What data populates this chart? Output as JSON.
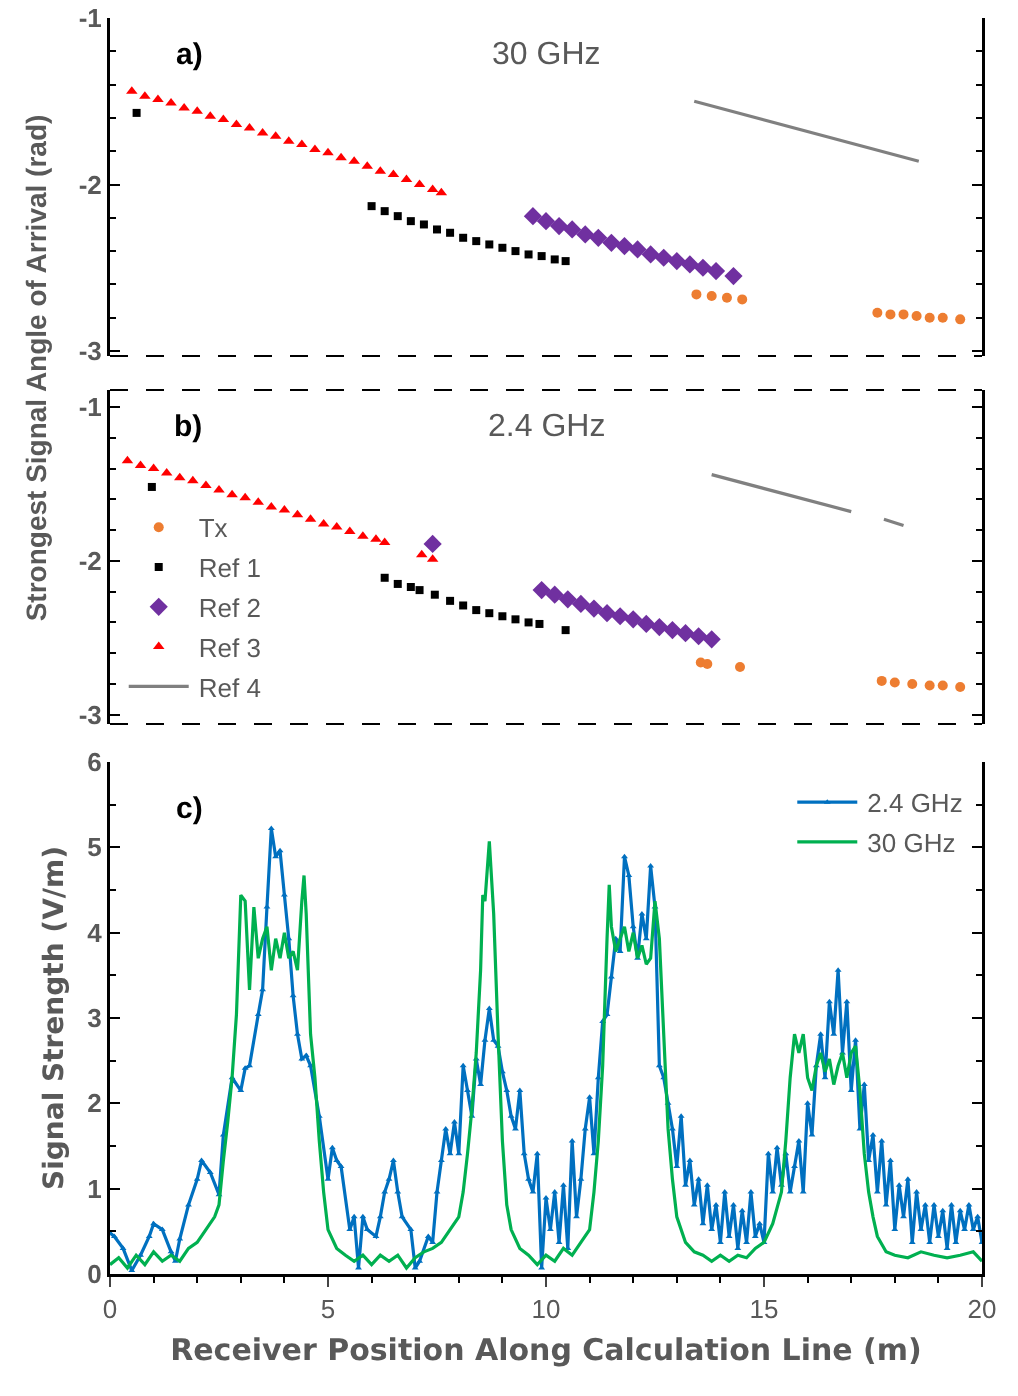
{
  "chart_data": [
    {
      "type": "scatter",
      "ylabel": "Strongest Signal Angle of Arrival (rad)",
      "annotations": [
        "a)",
        "30 GHz"
      ],
      "xlim": [
        0,
        20
      ],
      "ylim": [
        -3.03,
        -1
      ],
      "yticks": [
        -3,
        -2,
        -1
      ],
      "tick_labels": "y",
      "grid": false,
      "legend": false,
      "series": [
        {
          "color": "#ed7d31",
          "marker": "circle",
          "x": [
            13.45,
            13.8,
            14.15,
            14.5,
            17.6,
            17.9,
            18.2,
            18.5,
            18.8,
            19.1,
            19.5
          ],
          "values": [
            -2.66,
            -2.67,
            -2.68,
            -2.69,
            -2.77,
            -2.78,
            -2.78,
            -2.79,
            -2.8,
            -2.8,
            -2.81
          ]
        },
        {
          "color": "#000000",
          "marker": "square",
          "x": [
            0.61,
            6.0,
            6.3,
            6.6,
            6.9,
            7.2,
            7.5,
            7.8,
            8.1,
            8.4,
            8.7,
            9.0,
            9.3,
            9.6,
            9.9,
            10.2,
            10.45
          ],
          "values": [
            -1.57,
            -2.13,
            -2.16,
            -2.19,
            -2.22,
            -2.24,
            -2.27,
            -2.29,
            -2.32,
            -2.34,
            -2.36,
            -2.38,
            -2.4,
            -2.42,
            -2.43,
            -2.45,
            -2.46
          ]
        },
        {
          "color": "#7030a0",
          "marker": "diamond",
          "x": [
            9.7,
            10.0,
            10.3,
            10.6,
            10.9,
            11.2,
            11.5,
            11.8,
            12.1,
            12.4,
            12.7,
            13.0,
            13.3,
            13.6,
            13.9,
            14.3
          ],
          "values": [
            -2.19,
            -2.22,
            -2.25,
            -2.27,
            -2.3,
            -2.32,
            -2.35,
            -2.37,
            -2.39,
            -2.42,
            -2.44,
            -2.46,
            -2.48,
            -2.5,
            -2.52,
            -2.55
          ]
        },
        {
          "color": "#ff0000",
          "marker": "triangle",
          "x": [
            0.5,
            0.8,
            1.1,
            1.4,
            1.7,
            2.0,
            2.3,
            2.6,
            2.9,
            3.2,
            3.5,
            3.8,
            4.1,
            4.4,
            4.7,
            5.0,
            5.3,
            5.6,
            5.9,
            6.2,
            6.5,
            6.8,
            7.1,
            7.4,
            7.6
          ],
          "values": [
            -1.44,
            -1.47,
            -1.49,
            -1.51,
            -1.54,
            -1.56,
            -1.59,
            -1.61,
            -1.64,
            -1.66,
            -1.69,
            -1.71,
            -1.74,
            -1.76,
            -1.79,
            -1.81,
            -1.84,
            -1.86,
            -1.89,
            -1.92,
            -1.94,
            -1.97,
            -2.0,
            -2.03,
            -2.05
          ]
        },
        {
          "type": "line",
          "color": "#808080",
          "marker": "none",
          "x": [
            13.4,
            18.55
          ],
          "values": [
            -1.5,
            -1.86
          ]
        }
      ]
    },
    {
      "type": "scatter",
      "annotations": [
        "b)",
        "2.4 GHz"
      ],
      "xlim": [
        0,
        20
      ],
      "ylim": [
        -3.06,
        -0.89
      ],
      "yticks": [
        -3,
        -2,
        -1
      ],
      "tick_labels": "y",
      "grid": false,
      "legend": "bottom left",
      "series": [
        {
          "name": "Tx",
          "color": "#ed7d31",
          "marker": "circle",
          "x": [
            13.55,
            13.7,
            14.45,
            17.7,
            18.0,
            18.4,
            18.8,
            19.1,
            19.5
          ],
          "values": [
            -2.66,
            -2.67,
            -2.69,
            -2.78,
            -2.79,
            -2.8,
            -2.81,
            -2.81,
            -2.82
          ]
        },
        {
          "name": "Ref 1",
          "color": "#000000",
          "marker": "square",
          "x": [
            0.96,
            6.3,
            6.6,
            6.9,
            7.1,
            7.45,
            7.8,
            8.1,
            8.4,
            8.7,
            9.0,
            9.3,
            9.6,
            9.85,
            10.45
          ],
          "values": [
            -1.52,
            -2.11,
            -2.15,
            -2.17,
            -2.19,
            -2.22,
            -2.26,
            -2.29,
            -2.32,
            -2.34,
            -2.36,
            -2.38,
            -2.4,
            -2.41,
            -2.45
          ]
        },
        {
          "name": "Ref 2",
          "color": "#7030a0",
          "marker": "diamond",
          "x": [
            7.4,
            9.9,
            10.2,
            10.5,
            10.8,
            11.1,
            11.4,
            11.7,
            12.0,
            12.3,
            12.6,
            12.9,
            13.2,
            13.5,
            13.8
          ],
          "values": [
            -1.89,
            -2.19,
            -2.22,
            -2.25,
            -2.28,
            -2.31,
            -2.34,
            -2.36,
            -2.38,
            -2.41,
            -2.43,
            -2.45,
            -2.47,
            -2.49,
            -2.51
          ]
        },
        {
          "name": "Ref 3",
          "color": "#ff0000",
          "marker": "triangle",
          "x": [
            0.4,
            0.7,
            1.0,
            1.3,
            1.6,
            1.9,
            2.2,
            2.5,
            2.8,
            3.1,
            3.4,
            3.7,
            4.0,
            4.3,
            4.6,
            4.9,
            5.2,
            5.5,
            5.8,
            6.1,
            6.3,
            7.15,
            7.4
          ],
          "values": [
            -1.35,
            -1.38,
            -1.4,
            -1.43,
            -1.46,
            -1.48,
            -1.51,
            -1.54,
            -1.57,
            -1.59,
            -1.62,
            -1.65,
            -1.67,
            -1.7,
            -1.73,
            -1.76,
            -1.78,
            -1.81,
            -1.84,
            -1.86,
            -1.88,
            -1.96,
            -1.99
          ]
        },
        {
          "name": "Ref 4",
          "type": "line",
          "color": "#808080",
          "marker": "none",
          "x": [
            13.8,
            17.0,
            17.3,
            17.75,
            18.2
          ],
          "values": [
            -1.44,
            -1.68,
            null,
            -1.73,
            -1.77
          ]
        }
      ]
    },
    {
      "type": "line",
      "xlabel": "Receiver Position Along Calculation Line (m)",
      "ylabel": "Signal Strength (V/m)",
      "annotations": [
        "c)"
      ],
      "xlim": [
        0,
        20
      ],
      "xticks": [
        0,
        5,
        10,
        15,
        20
      ],
      "ylim": [
        0,
        6
      ],
      "yticks": [
        0,
        1,
        2,
        3,
        4,
        5,
        6
      ],
      "grid": false,
      "legend": "top right",
      "series": [
        {
          "name": "2.4 GHz",
          "color": "#0070c0",
          "marker": "triangle",
          "x": [
            0.0,
            0.1,
            0.3,
            0.5,
            0.7,
            0.9,
            1.0,
            1.2,
            1.4,
            1.5,
            1.6,
            1.8,
            2.0,
            2.1,
            2.3,
            2.5,
            2.6,
            2.8,
            3.0,
            3.1,
            3.2,
            3.4,
            3.5,
            3.6,
            3.7,
            3.8,
            3.9,
            4.0,
            4.1,
            4.2,
            4.3,
            4.4,
            4.5,
            4.6,
            4.8,
            5.0,
            5.1,
            5.2,
            5.3,
            5.5,
            5.6,
            5.7,
            5.8,
            5.9,
            6.1,
            6.2,
            6.3,
            6.4,
            6.5,
            6.6,
            6.7,
            6.9,
            7.0,
            7.1,
            7.3,
            7.4,
            7.5,
            7.6,
            7.7,
            7.8,
            7.9,
            8.0,
            8.1,
            8.2,
            8.3,
            8.4,
            8.5,
            8.6,
            8.7,
            8.8,
            8.9,
            9.0,
            9.1,
            9.2,
            9.3,
            9.4,
            9.5,
            9.6,
            9.7,
            9.8,
            9.9,
            10.0,
            10.1,
            10.2,
            10.3,
            10.4,
            10.5,
            10.6,
            10.7,
            10.8,
            10.9,
            11.0,
            11.1,
            11.2,
            11.3,
            11.4,
            11.5,
            11.6,
            11.7,
            11.8,
            11.9,
            12.0,
            12.1,
            12.2,
            12.3,
            12.4,
            12.5,
            12.6,
            12.7,
            12.8,
            12.9,
            13.0,
            13.1,
            13.2,
            13.3,
            13.4,
            13.5,
            13.6,
            13.7,
            13.8,
            13.9,
            14.0,
            14.1,
            14.2,
            14.3,
            14.4,
            14.5,
            14.6,
            14.7,
            14.8,
            14.9,
            15.0,
            15.1,
            15.2,
            15.3,
            15.4,
            15.5,
            15.6,
            15.7,
            15.8,
            15.9,
            16.0,
            16.1,
            16.2,
            16.3,
            16.4,
            16.5,
            16.6,
            16.7,
            16.8,
            16.9,
            17.0,
            17.1,
            17.2,
            17.3,
            17.4,
            17.5,
            17.6,
            17.7,
            17.8,
            17.9,
            18.0,
            18.1,
            18.2,
            18.3,
            18.4,
            18.5,
            18.6,
            18.7,
            18.8,
            18.9,
            19.0,
            19.1,
            19.2,
            19.3,
            19.4,
            19.5,
            19.6,
            19.7,
            19.8,
            19.9,
            20.0
          ],
          "values": [
            0.48,
            0.44,
            0.3,
            0.04,
            0.22,
            0.44,
            0.59,
            0.52,
            0.26,
            0.15,
            0.41,
            0.81,
            1.11,
            1.33,
            1.19,
            0.93,
            1.63,
            2.3,
            2.15,
            2.41,
            2.44,
            3.04,
            3.33,
            4.3,
            5.22,
            4.89,
            4.96,
            4.44,
            3.93,
            3.26,
            2.81,
            2.52,
            2.56,
            2.44,
            1.85,
            1.11,
            1.48,
            1.33,
            1.26,
            0.52,
            0.67,
            0.07,
            0.67,
            0.52,
            0.44,
            0.67,
            0.96,
            1.11,
            1.33,
            0.96,
            0.67,
            0.52,
            0.07,
            0.15,
            0.44,
            0.37,
            0.96,
            1.33,
            1.7,
            1.41,
            1.78,
            1.41,
            2.44,
            2.15,
            1.85,
            2.52,
            2.22,
            2.74,
            3.11,
            2.74,
            2.67,
            2.37,
            2.15,
            1.85,
            1.7,
            2.15,
            1.41,
            1.11,
            0.96,
            1.41,
            0.07,
            0.89,
            0.52,
            0.96,
            0.37,
            1.04,
            0.3,
            1.56,
            0.67,
            1.11,
            1.7,
            2.07,
            1.41,
            2.3,
            2.96,
            3.04,
            3.48,
            3.93,
            3.78,
            4.89,
            4.67,
            4.07,
            3.7,
            4.22,
            3.93,
            4.78,
            4.3,
            2.44,
            2.3,
            2.0,
            1.7,
            1.26,
            1.85,
            1.04,
            1.33,
            0.81,
            1.11,
            0.59,
            1.04,
            0.52,
            0.81,
            0.37,
            0.96,
            0.44,
            0.81,
            0.3,
            0.74,
            0.37,
            0.96,
            0.44,
            0.59,
            0.37,
            1.41,
            0.96,
            1.48,
            1.04,
            1.41,
            0.96,
            1.26,
            1.56,
            0.96,
            2.0,
            1.63,
            2.44,
            2.81,
            2.3,
            3.19,
            2.81,
            3.56,
            2.59,
            3.19,
            2.15,
            2.74,
            1.7,
            2.22,
            1.33,
            1.63,
            0.96,
            1.56,
            0.81,
            1.33,
            0.52,
            1.04,
            0.67,
            1.11,
            0.37,
            0.96,
            0.52,
            0.81,
            0.37,
            0.81,
            0.44,
            0.74,
            0.3,
            0.81,
            0.37,
            0.74,
            0.52,
            0.81,
            0.52,
            0.67,
            0.37
          ]
        },
        {
          "name": "30 GHz",
          "color": "#00b050",
          "marker": "none",
          "x": [
            0.0,
            0.2,
            0.4,
            0.6,
            0.8,
            1.0,
            1.2,
            1.4,
            1.6,
            1.8,
            2.0,
            2.2,
            2.4,
            2.5,
            2.6,
            2.7,
            2.8,
            2.9,
            3.0,
            3.1,
            3.2,
            3.3,
            3.4,
            3.5,
            3.6,
            3.7,
            3.8,
            3.9,
            4.0,
            4.1,
            4.2,
            4.3,
            4.4,
            4.45,
            4.5,
            4.6,
            4.7,
            4.8,
            4.9,
            5.0,
            5.2,
            5.4,
            5.6,
            5.8,
            6.0,
            6.2,
            6.4,
            6.6,
            6.8,
            7.0,
            7.2,
            7.4,
            7.6,
            7.8,
            8.0,
            8.1,
            8.2,
            8.3,
            8.4,
            8.5,
            8.55,
            8.6,
            8.7,
            8.8,
            8.9,
            9.0,
            9.1,
            9.2,
            9.4,
            9.6,
            9.8,
            10.0,
            10.2,
            10.4,
            10.6,
            10.8,
            11.0,
            11.1,
            11.2,
            11.3,
            11.4,
            11.45,
            11.5,
            11.6,
            11.7,
            11.8,
            11.9,
            12.0,
            12.1,
            12.2,
            12.3,
            12.4,
            12.5,
            12.6,
            12.7,
            12.8,
            12.9,
            13.0,
            13.2,
            13.4,
            13.6,
            13.8,
            14.0,
            14.2,
            14.4,
            14.6,
            14.8,
            15.0,
            15.2,
            15.4,
            15.5,
            15.6,
            15.7,
            15.8,
            15.9,
            16.0,
            16.1,
            16.2,
            16.3,
            16.4,
            16.5,
            16.6,
            16.7,
            16.8,
            16.9,
            17.0,
            17.1,
            17.2,
            17.3,
            17.4,
            17.5,
            17.6,
            17.8,
            18.0,
            18.3,
            18.6,
            18.9,
            19.2,
            19.5,
            19.8,
            20.0
          ],
          "values": [
            0.11,
            0.19,
            0.07,
            0.22,
            0.11,
            0.26,
            0.15,
            0.22,
            0.15,
            0.3,
            0.37,
            0.52,
            0.67,
            0.81,
            1.33,
            1.78,
            2.3,
            3.04,
            4.44,
            4.37,
            3.33,
            4.3,
            3.7,
            3.93,
            4.07,
            3.56,
            3.93,
            3.7,
            4.0,
            3.7,
            3.78,
            3.56,
            4.37,
            4.67,
            4.22,
            2.81,
            2.3,
            1.56,
            0.96,
            0.52,
            0.3,
            0.22,
            0.15,
            0.22,
            0.11,
            0.22,
            0.15,
            0.22,
            0.07,
            0.19,
            0.26,
            0.3,
            0.37,
            0.52,
            0.67,
            0.96,
            1.41,
            1.93,
            2.59,
            3.56,
            4.44,
            4.37,
            5.07,
            4.22,
            2.81,
            1.56,
            0.81,
            0.52,
            0.3,
            0.22,
            0.11,
            0.22,
            0.15,
            0.3,
            0.22,
            0.37,
            0.52,
            0.96,
            1.56,
            2.44,
            3.93,
            4.56,
            4.07,
            3.78,
            3.93,
            4.07,
            3.78,
            4.0,
            3.7,
            3.85,
            3.63,
            3.7,
            4.37,
            3.93,
            2.81,
            1.7,
            1.11,
            0.67,
            0.37,
            0.26,
            0.22,
            0.15,
            0.22,
            0.15,
            0.22,
            0.19,
            0.3,
            0.37,
            0.59,
            0.96,
            1.56,
            2.3,
            2.81,
            2.59,
            2.81,
            2.3,
            2.15,
            2.44,
            2.59,
            2.37,
            2.52,
            2.22,
            2.44,
            2.59,
            2.3,
            2.59,
            2.67,
            2.15,
            1.41,
            0.96,
            0.67,
            0.44,
            0.26,
            0.22,
            0.19,
            0.26,
            0.22,
            0.19,
            0.22,
            0.26,
            0.15
          ]
        }
      ]
    }
  ]
}
